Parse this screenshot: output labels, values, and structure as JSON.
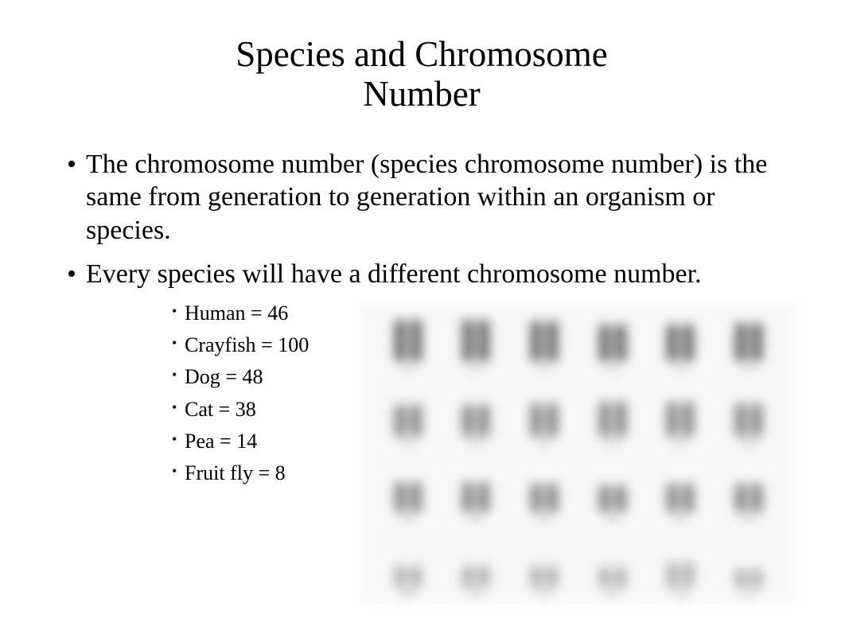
{
  "title_line1": "Species and Chromosome",
  "title_line2": "Number",
  "bullets": {
    "b1": "The chromosome number (species chromosome number) is the same from generation to generation within an organism or species.",
    "b2": "Every species will have a different chromosome number.",
    "examples": {
      "e1": "Human = 46",
      "e2": "Crayfish = 100",
      "e3": "Dog = 48",
      "e4": "Cat = 38",
      "e5": "Pea = 14",
      "e6": "Fruit fly = 8"
    }
  },
  "karyotype": {
    "background_color": "#f7f7f7",
    "rows": [
      {
        "pairs": 6,
        "heights": [
          52,
          52,
          50,
          46,
          46,
          48
        ],
        "color": "#5c5c5c"
      },
      {
        "pairs": 6,
        "heights": [
          40,
          40,
          42,
          44,
          44,
          42
        ],
        "color": "#7d7d7d"
      },
      {
        "pairs": 6,
        "heights": [
          38,
          38,
          36,
          34,
          36,
          36
        ],
        "color": "#7b7b7b"
      },
      {
        "pairs": 6,
        "heights": [
          28,
          28,
          28,
          26,
          32,
          24
        ],
        "color": "#a9a9a9"
      }
    ]
  },
  "colors": {
    "text": "#000000",
    "background": "#ffffff"
  },
  "fonts": {
    "family": "Times New Roman",
    "title_size_pt": 34,
    "body_size_pt": 26,
    "sub_size_pt": 20
  }
}
